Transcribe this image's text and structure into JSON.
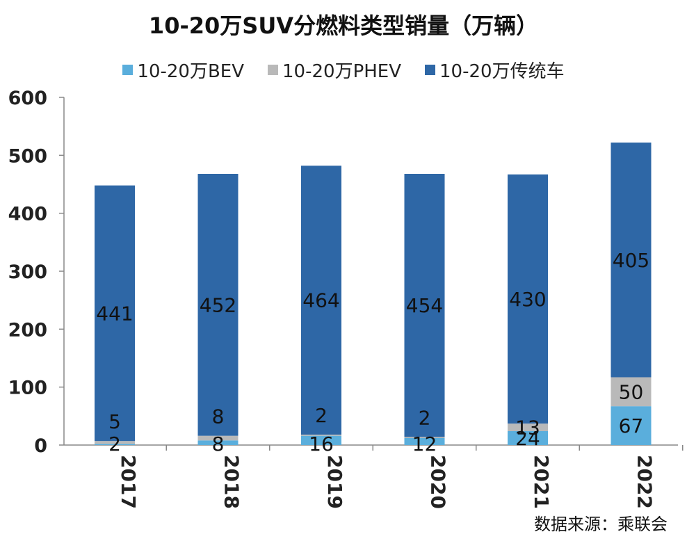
{
  "chart_data": {
    "type": "bar",
    "stacked": true,
    "title": "10-20万SUV分燃料类型销量（万辆）",
    "categories": [
      "2017",
      "2018",
      "2019",
      "2020",
      "2021",
      "2022"
    ],
    "series": [
      {
        "name": "10-20万BEV",
        "color": "#5aaedc",
        "values": [
          2,
          8,
          16,
          12,
          24,
          67
        ]
      },
      {
        "name": "10-20万PHEV",
        "color": "#b9b9b9",
        "values": [
          5,
          8,
          2,
          2,
          13,
          50
        ]
      },
      {
        "name": "10-20万传统车",
        "color": "#2e67a6",
        "values": [
          441,
          452,
          464,
          454,
          430,
          405
        ]
      }
    ],
    "ylim": [
      0,
      600
    ],
    "yticks": [
      0,
      100,
      200,
      300,
      400,
      500,
      600
    ],
    "grid": false,
    "legend_position": "top"
  },
  "source": "数据来源：乘联会"
}
